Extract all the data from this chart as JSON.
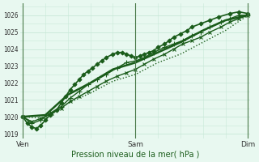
{
  "xlabel": "Pression niveau de la mer( hPa )",
  "bg_color": "#e8f8f0",
  "grid_color": "#c8e8d8",
  "line_color": "#1a5c1a",
  "x_ticks_labels": [
    "Ven",
    "Sam",
    "Dim"
  ],
  "x_ticks_pos": [
    0.0,
    0.5,
    1.0
  ],
  "ylim": [
    1018.7,
    1026.7
  ],
  "yticks": [
    1019,
    1020,
    1021,
    1022,
    1023,
    1024,
    1025,
    1026
  ],
  "series": [
    {
      "x": [
        0.0,
        0.02,
        0.04,
        0.06,
        0.08,
        0.1,
        0.12,
        0.15,
        0.17,
        0.19,
        0.21,
        0.23,
        0.25,
        0.27,
        0.29,
        0.31,
        0.33,
        0.35,
        0.37,
        0.4,
        0.42,
        0.44,
        0.46,
        0.48,
        0.5,
        0.52,
        0.54,
        0.56,
        0.58,
        0.6,
        0.63,
        0.65,
        0.67,
        0.7,
        0.73,
        0.75,
        0.79,
        0.83,
        0.87,
        0.92,
        0.96,
        1.0
      ],
      "y": [
        1020.0,
        1019.6,
        1019.4,
        1019.3,
        1019.5,
        1019.8,
        1020.1,
        1020.4,
        1020.8,
        1021.2,
        1021.6,
        1021.9,
        1022.2,
        1022.5,
        1022.7,
        1022.9,
        1023.1,
        1023.3,
        1023.5,
        1023.7,
        1023.8,
        1023.8,
        1023.7,
        1023.6,
        1023.5,
        1023.6,
        1023.7,
        1023.8,
        1023.9,
        1024.1,
        1024.3,
        1024.5,
        1024.7,
        1024.9,
        1025.1,
        1025.3,
        1025.5,
        1025.7,
        1025.9,
        1026.1,
        1026.2,
        1026.1
      ],
      "marker": "D",
      "linewidth": 1.2,
      "markersize": 2.5,
      "linestyle": "-"
    },
    {
      "x": [
        0.0,
        0.04,
        0.08,
        0.12,
        0.17,
        0.21,
        0.25,
        0.29,
        0.33,
        0.37,
        0.42,
        0.46,
        0.5,
        0.54,
        0.58,
        0.63,
        0.67,
        0.71,
        0.75,
        0.79,
        0.83,
        0.88,
        0.92,
        0.96,
        1.0
      ],
      "y": [
        1020.0,
        1019.6,
        1019.8,
        1020.2,
        1020.6,
        1021.1,
        1021.5,
        1021.9,
        1022.2,
        1022.5,
        1022.9,
        1023.2,
        1023.3,
        1023.5,
        1023.8,
        1024.1,
        1024.3,
        1024.5,
        1024.8,
        1025.0,
        1025.3,
        1025.6,
        1025.8,
        1026.0,
        1026.0
      ],
      "marker": "+",
      "linewidth": 1.0,
      "markersize": 4,
      "linestyle": "-"
    },
    {
      "x": [
        0.0,
        0.04,
        0.08,
        0.13,
        0.17,
        0.21,
        0.25,
        0.29,
        0.33,
        0.37,
        0.42,
        0.46,
        0.5,
        0.54,
        0.58,
        0.63,
        0.67,
        0.71,
        0.75,
        0.79,
        0.83,
        0.88,
        0.92,
        0.96,
        1.0
      ],
      "y": [
        1020.0,
        1019.7,
        1019.9,
        1020.2,
        1020.5,
        1020.9,
        1021.2,
        1021.5,
        1021.8,
        1022.1,
        1022.4,
        1022.6,
        1022.8,
        1023.1,
        1023.4,
        1023.7,
        1024.0,
        1024.3,
        1024.5,
        1024.7,
        1025.0,
        1025.3,
        1025.6,
        1025.8,
        1026.0
      ],
      "marker": "x",
      "linewidth": 1.0,
      "markersize": 3,
      "linestyle": "-"
    },
    {
      "x": [
        0.0,
        0.1,
        0.2,
        0.3,
        0.4,
        0.5,
        0.6,
        0.7,
        0.8,
        0.9,
        1.0
      ],
      "y": [
        1020.0,
        1020.1,
        1021.3,
        1022.0,
        1022.8,
        1023.2,
        1023.8,
        1024.4,
        1025.1,
        1025.7,
        1026.0
      ],
      "marker": null,
      "linewidth": 1.8,
      "markersize": 0,
      "linestyle": "-"
    },
    {
      "x": [
        0.0,
        0.1,
        0.2,
        0.3,
        0.4,
        0.5,
        0.6,
        0.7,
        0.8,
        0.9,
        1.0
      ],
      "y": [
        1020.0,
        1019.9,
        1020.8,
        1021.4,
        1022.1,
        1022.5,
        1023.2,
        1023.7,
        1024.4,
        1025.1,
        1026.0
      ],
      "marker": null,
      "linewidth": 1.0,
      "markersize": 0,
      "linestyle": ":"
    }
  ]
}
